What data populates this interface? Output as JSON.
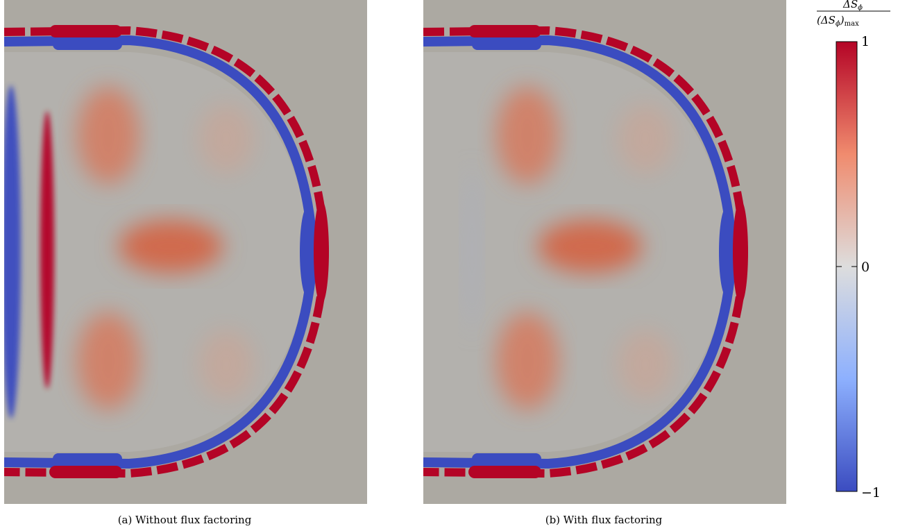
{
  "panels": [
    {
      "id": "a",
      "caption": "(a) Without flux factoring"
    },
    {
      "id": "b",
      "caption": "(b) With flux factoring"
    }
  ],
  "colorbar": {
    "label_numerator": "ΔS",
    "label_numerator_sub": "ϕ",
    "label_denominator": "(ΔS",
    "label_denominator_sub": "ϕ",
    "label_denominator_close": ")",
    "label_denominator_sub2": "max",
    "tick_top": "1",
    "tick_mid": "0",
    "tick_bottom": "−1",
    "colors": {
      "max": "#b40426",
      "upper": "#f08b6e",
      "mid": "#dddddd",
      "lower": "#8db0fe",
      "min": "#3b4cc0"
    }
  },
  "field_colors": {
    "background": "#aca9a2",
    "red": "#b40426",
    "blue": "#3b4cc0",
    "light_red": "#d57a5e"
  }
}
